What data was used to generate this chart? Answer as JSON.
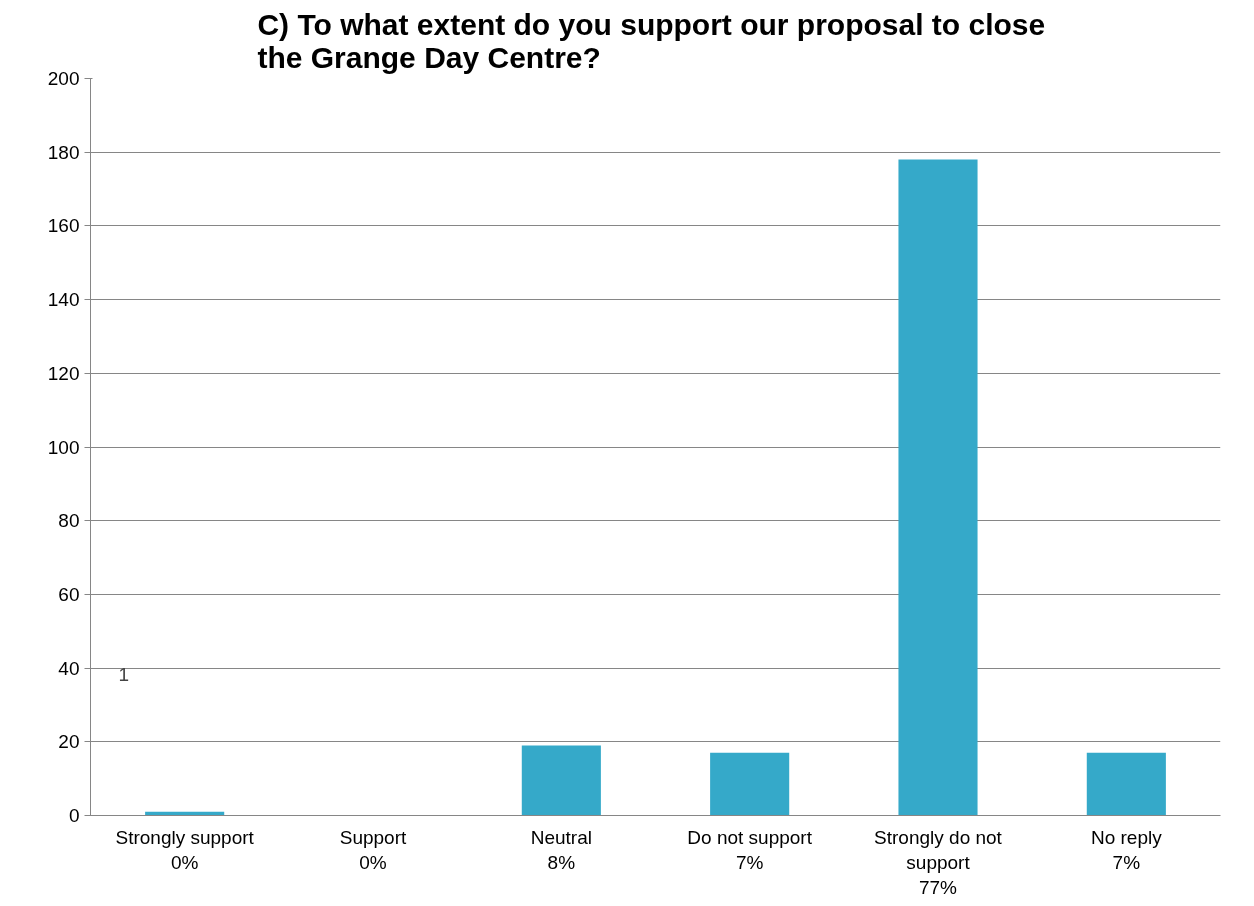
{
  "chart_data": {
    "type": "bar",
    "title": "C)  To what extent do you support our proposal to close the Grange Day Centre?",
    "categories": [
      "Strongly support\n0%",
      "Support\n0%",
      "Neutral\n8%",
      "Do not support\n7%",
      "Strongly do not\nsupport\n77%",
      "No reply\n7%"
    ],
    "values": [
      1,
      0,
      19,
      17,
      178,
      17
    ],
    "color": "#35a9c9",
    "ylim": [
      0,
      200
    ],
    "yticks": [
      0,
      20,
      40,
      60,
      80,
      100,
      120,
      140,
      160,
      180,
      200
    ],
    "grid": "y",
    "annotations": [
      "1"
    ]
  }
}
